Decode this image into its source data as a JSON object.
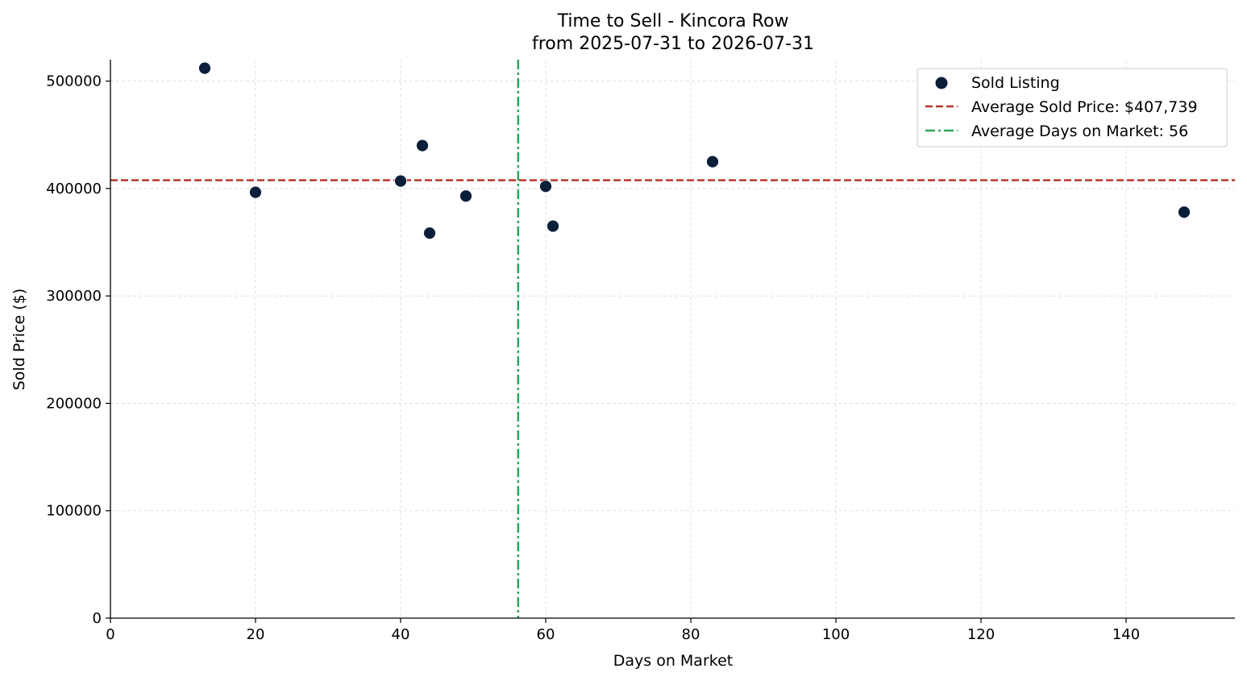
{
  "chart_data": {
    "type": "scatter",
    "title": "Time to Sell - Kincora Row",
    "subtitle": "from 2025-07-31 to 2026-07-31",
    "xlabel": "Days on Market",
    "ylabel": "Sold Price ($)",
    "xlim": [
      0,
      155
    ],
    "ylim": [
      0,
      520000
    ],
    "xticks": [
      0,
      20,
      40,
      60,
      80,
      100,
      120,
      140
    ],
    "yticks": [
      0,
      100000,
      200000,
      300000,
      400000,
      500000
    ],
    "xtick_labels": [
      "0",
      "20",
      "40",
      "60",
      "80",
      "100",
      "120",
      "140"
    ],
    "ytick_labels": [
      "0",
      "100000",
      "200000",
      "300000",
      "400000",
      "500000"
    ],
    "grid": true,
    "legend_position": "top-right",
    "series": [
      {
        "name": "Sold Listing",
        "color": "#0b1f3a",
        "x": [
          13,
          20,
          40,
          43,
          44,
          49,
          60,
          61,
          83,
          148
        ],
        "y": [
          512000,
          396500,
          407000,
          440000,
          358500,
          393000,
          402000,
          365000,
          425000,
          378000
        ]
      }
    ],
    "reference_lines": [
      {
        "name": "Average Sold Price: $407,739",
        "orientation": "horizontal",
        "value": 407739,
        "style": "dashed",
        "color": "#b5372a"
      },
      {
        "name": "Average Days on Market: 56",
        "orientation": "vertical",
        "value": 56.2,
        "style": "dashdot",
        "color": "#2aa65c"
      }
    ]
  }
}
